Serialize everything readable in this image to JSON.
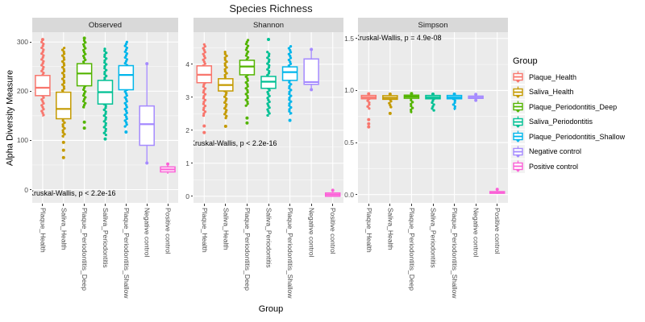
{
  "title": "Species Richness",
  "y_axis_title": "Alpha Diversity Measure",
  "x_axis_title": "Group",
  "legend": {
    "title": "Group",
    "items": [
      {
        "label": "Plaque_Health",
        "color": "#F8766D"
      },
      {
        "label": "Saliva_Health",
        "color": "#C49A00"
      },
      {
        "label": "Plaque_Periodontitis_Deep",
        "color": "#53B400"
      },
      {
        "label": "Saliva_Periodontitis",
        "color": "#00C094"
      },
      {
        "label": "Plaque_Periodontitis_Shallow",
        "color": "#00B6EB"
      },
      {
        "label": "Negative control",
        "color": "#A58AFF"
      },
      {
        "label": "Positive control",
        "color": "#FB61D7"
      }
    ]
  },
  "colors": {
    "panel_background": "#EBEBEB",
    "strip_background": "#D9D9D9",
    "gridline": "#FFFFFF",
    "tick_text": "#4D4D4D"
  },
  "chart_data": {
    "type": "boxplot-faceted",
    "categories": [
      "Plaque_Health",
      "Saliva_Health",
      "Plaque_Periodontitis_Deep",
      "Saliva_Periodontitis",
      "Plaque_Periodontitis_Shallow",
      "Negative control",
      "Positive control"
    ],
    "group_colors": [
      "#F8766D",
      "#C49A00",
      "#53B400",
      "#00C094",
      "#00B6EB",
      "#A58AFF",
      "#FB61D7"
    ],
    "legend_position": "right",
    "grid": true,
    "facets": [
      {
        "label": "Observed",
        "annotation": "Kruskal-Wallis, p < 2.2e-16",
        "y_ticks": [
          "0",
          "100",
          "200",
          "300"
        ],
        "tick_values": [
          0,
          100,
          200,
          300
        ],
        "ylim": [
          -27,
          320
        ],
        "groups": [
          {
            "q1": 191,
            "median": 207,
            "q3": 232,
            "dense": [
              [
                148,
                191
              ],
              [
                232,
                300
              ]
            ],
            "outliers": [
              305
            ]
          },
          {
            "q1": 144,
            "median": 164,
            "q3": 198,
            "dense": [
              [
                105,
                144
              ],
              [
                198,
                288
              ]
            ],
            "outliers": [
              96,
              80,
              65
            ]
          },
          {
            "q1": 211,
            "median": 236,
            "q3": 256,
            "dense": [
              [
                165,
                211
              ],
              [
                256,
                303
              ]
            ],
            "outliers": [
              137,
              125,
              308
            ]
          },
          {
            "q1": 174,
            "median": 198,
            "q3": 222,
            "dense": [
              [
                109,
                174
              ],
              [
                222,
                286
              ]
            ],
            "outliers": [
              103
            ]
          },
          {
            "q1": 203,
            "median": 233,
            "q3": 252,
            "dense": [
              [
                128,
                203
              ],
              [
                252,
                300
              ]
            ],
            "outliers": [
              117
            ]
          },
          {
            "q1": 90,
            "median": 133,
            "q3": 170,
            "whiskers": [
              54,
              256
            ],
            "outliers": [
              54,
              256
            ]
          },
          {
            "q1": 36,
            "median": 41,
            "q3": 46,
            "whiskers": [
              32,
              49
            ],
            "outliers": [
              52
            ]
          }
        ]
      },
      {
        "label": "Shannon",
        "annotation": "Kruskal-Wallis, p < 2.2e-16",
        "y_ticks": [
          "0",
          "1",
          "2",
          "3",
          "4"
        ],
        "tick_values": [
          0,
          1,
          2,
          3,
          4
        ],
        "ylim": [
          -0.2,
          4.97
        ],
        "groups": [
          {
            "q1": 3.44,
            "median": 3.68,
            "q3": 3.95,
            "dense": [
              [
                2.41,
                3.44
              ],
              [
                3.95,
                4.6
              ]
            ],
            "outliers": [
              2.13,
              1.93
            ]
          },
          {
            "q1": 3.19,
            "median": 3.37,
            "q3": 3.56,
            "dense": [
              [
                2.34,
                3.19
              ],
              [
                3.56,
                4.37
              ]
            ],
            "outliers": [
              2.12
            ]
          },
          {
            "q1": 3.68,
            "median": 3.93,
            "q3": 4.12,
            "dense": [
              [
                2.73,
                3.68
              ],
              [
                4.12,
                4.73
              ]
            ],
            "outliers": [
              2.37,
              2.22
            ]
          },
          {
            "q1": 3.27,
            "median": 3.47,
            "q3": 3.63,
            "dense": [
              [
                2.41,
                3.27
              ],
              [
                3.63,
                4.37
              ]
            ],
            "outliers": [
              4.75
            ]
          },
          {
            "q1": 3.51,
            "median": 3.76,
            "q3": 3.92,
            "dense": [
              [
                2.46,
                3.51
              ],
              [
                3.92,
                4.54
              ]
            ],
            "outliers": [
              2.3
            ]
          },
          {
            "q1": 3.39,
            "median": 3.46,
            "q3": 4.16,
            "whiskers": [
              3.23,
              4.45
            ],
            "outliers": [
              3.23,
              4.45
            ]
          },
          {
            "q1": 0.0,
            "median": 0.05,
            "q3": 0.1,
            "whiskers": [
              0,
              0.13
            ],
            "outliers": [
              0.18
            ]
          }
        ]
      },
      {
        "label": "Simpson",
        "annotation": "Kruskal-Wallis, p = 4.9e-08",
        "y_ticks": [
          "0.0",
          "0.5",
          "1.0",
          "1.5"
        ],
        "tick_values": [
          0,
          0.5,
          1.0,
          1.5
        ],
        "ylim": [
          -0.08,
          1.56
        ],
        "groups": [
          {
            "q1": 0.92,
            "median": 0.935,
            "q3": 0.952,
            "dense": [
              [
                0.82,
                0.92
              ]
            ],
            "outliers": [
              0.968,
              0.72,
              0.68,
              0.65
            ]
          },
          {
            "q1": 0.915,
            "median": 0.93,
            "q3": 0.95,
            "dense": [
              [
                0.83,
                0.915
              ]
            ],
            "outliers": [
              0.965,
              0.78
            ]
          },
          {
            "q1": 0.925,
            "median": 0.94,
            "q3": 0.955,
            "dense": [
              [
                0.78,
                0.925
              ]
            ],
            "outliers": [
              0.97
            ]
          },
          {
            "q1": 0.92,
            "median": 0.935,
            "q3": 0.952,
            "dense": [
              [
                0.8,
                0.92
              ]
            ],
            "outliers": [
              0.965
            ]
          },
          {
            "q1": 0.92,
            "median": 0.935,
            "q3": 0.952,
            "dense": [
              [
                0.81,
                0.92
              ]
            ],
            "outliers": [
              0.965
            ]
          },
          {
            "q1": 0.924,
            "median": 0.932,
            "q3": 0.946,
            "whiskers": [
              0.905,
              0.962
            ],
            "outliers": [
              0.905,
              0.962
            ]
          },
          {
            "q1": 0.012,
            "median": 0.02,
            "q3": 0.028,
            "whiskers": [
              0.005,
              0.035
            ],
            "outliers": [
              0.05
            ]
          }
        ]
      }
    ]
  }
}
